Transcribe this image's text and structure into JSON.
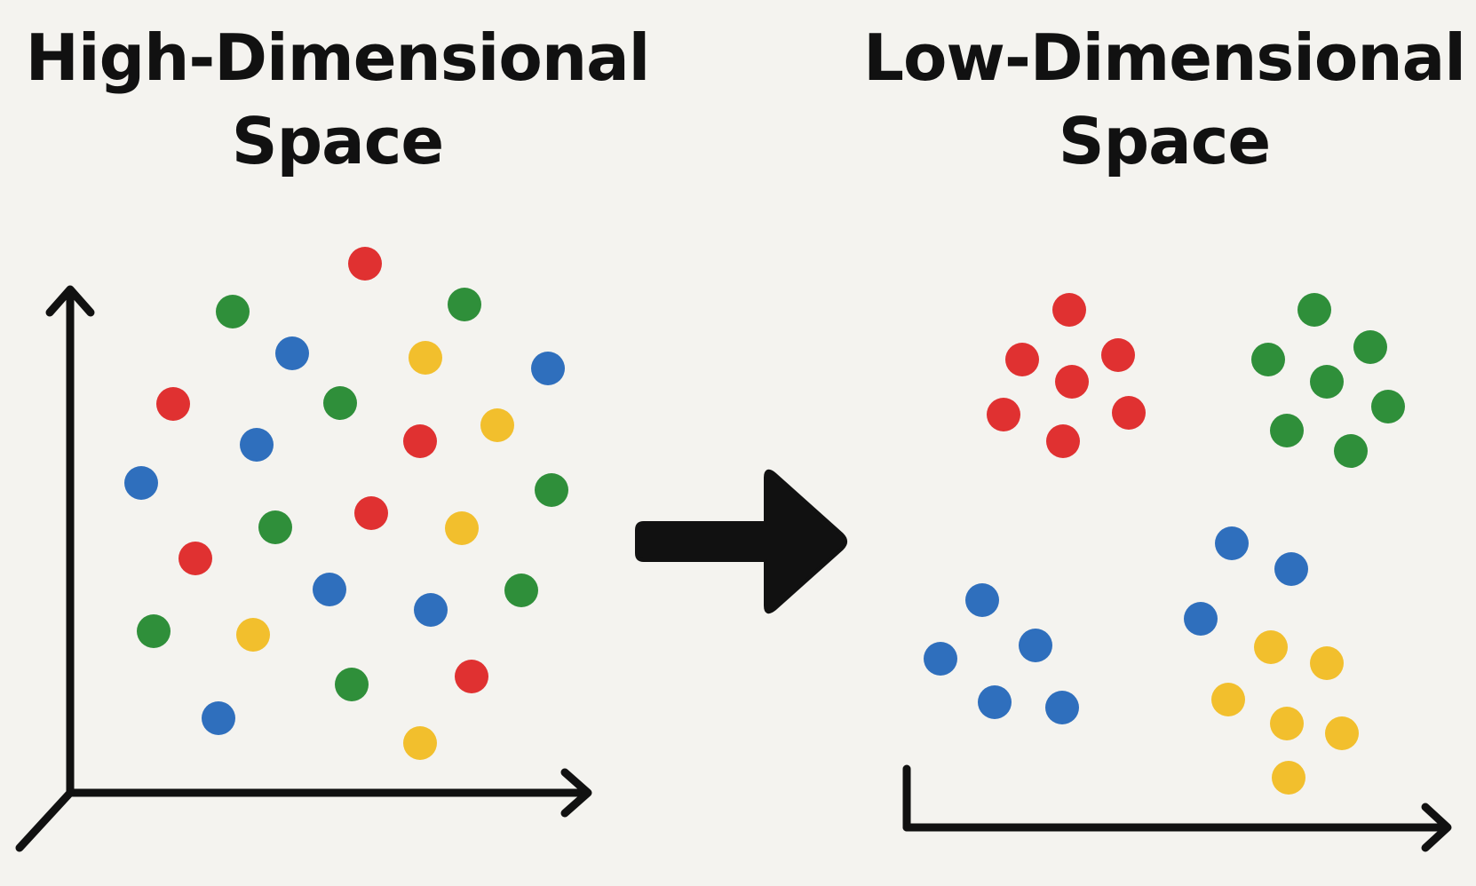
{
  "left_panel": {
    "title": "High-Dimensional\nSpace"
  },
  "right_panel": {
    "title": "Low-Dimensional\nSpace"
  },
  "colors": {
    "red": "#e03131",
    "green": "#2f8f3a",
    "blue": "#2f6fbd",
    "yellow": "#f2bf2d",
    "ink": "#111111",
    "background": "#f4f3ef"
  },
  "icons": {
    "transform_arrow": "right-arrow-icon",
    "high_dim_axes": "3d-axes-icon",
    "low_dim_axes": "2d-axes-icon"
  },
  "points": {
    "high_dimensional": [
      {
        "color": "red"
      },
      {
        "color": "green"
      },
      {
        "color": "green"
      },
      {
        "color": "blue"
      },
      {
        "color": "yellow"
      },
      {
        "color": "blue"
      },
      {
        "color": "red"
      },
      {
        "color": "green"
      },
      {
        "color": "yellow"
      },
      {
        "color": "blue"
      },
      {
        "color": "red"
      },
      {
        "color": "blue"
      },
      {
        "color": "green"
      },
      {
        "color": "green"
      },
      {
        "color": "red"
      },
      {
        "color": "yellow"
      },
      {
        "color": "red"
      },
      {
        "color": "blue"
      },
      {
        "color": "green"
      },
      {
        "color": "blue"
      },
      {
        "color": "green"
      },
      {
        "color": "yellow"
      },
      {
        "color": "green"
      },
      {
        "color": "red"
      },
      {
        "color": "blue"
      },
      {
        "color": "yellow"
      }
    ],
    "low_dimensional_clusters": [
      {
        "color": "red",
        "count": 7
      },
      {
        "color": "green",
        "count": 7
      },
      {
        "color": "blue",
        "count": 5
      },
      {
        "color": "blue",
        "count": 3
      },
      {
        "color": "yellow",
        "count": 6
      }
    ]
  }
}
